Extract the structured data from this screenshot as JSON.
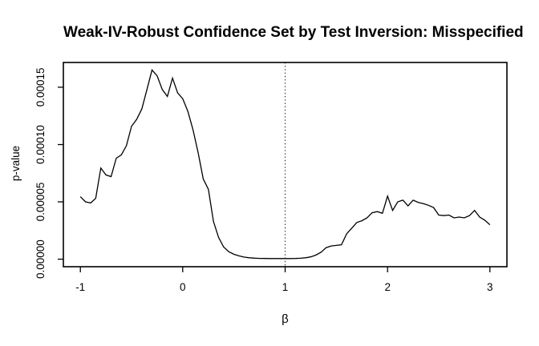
{
  "chart_data": {
    "type": "line",
    "title": "Weak-IV-Robust Confidence Set by Test Inversion: Misspecified",
    "xlabel": "β",
    "ylabel": "p-value",
    "x_tick_labels": [
      "-1",
      "0",
      "1",
      "2",
      "3"
    ],
    "x_tick_values": [
      -1,
      0,
      1,
      2,
      3
    ],
    "y_tick_labels": [
      "0.00000",
      "0.00005",
      "0.00010",
      "0.00015"
    ],
    "y_tick_values": [
      0.0,
      5e-05,
      0.0001,
      0.00015
    ],
    "xlim": [
      -1.166,
      3.166
    ],
    "ylim": [
      -6.6e-06,
      0.0001716
    ],
    "grid": false,
    "legend": "none",
    "line_color": "#000000",
    "background_color": "#ffffff",
    "reference_line": {
      "x": 1,
      "style": "dotted",
      "color": "#2a2a2a"
    },
    "series": [
      {
        "name": "p-value",
        "x": [
          -1.0,
          -0.95,
          -0.9,
          -0.85,
          -0.8,
          -0.75,
          -0.7,
          -0.65,
          -0.6,
          -0.55,
          -0.5,
          -0.45,
          -0.4,
          -0.35,
          -0.3,
          -0.25,
          -0.2,
          -0.15,
          -0.1,
          -0.05,
          0.0,
          0.05,
          0.1,
          0.15,
          0.2,
          0.25,
          0.3,
          0.35,
          0.4,
          0.45,
          0.5,
          0.55,
          0.6,
          0.65,
          0.7,
          0.75,
          0.8,
          0.85,
          0.9,
          0.95,
          1.0,
          1.05,
          1.1,
          1.15,
          1.2,
          1.25,
          1.3,
          1.35,
          1.4,
          1.45,
          1.5,
          1.55,
          1.6,
          1.65,
          1.7,
          1.75,
          1.8,
          1.85,
          1.9,
          1.95,
          2.0,
          2.05,
          2.1,
          2.15,
          2.2,
          2.25,
          2.3,
          2.35,
          2.4,
          2.45,
          2.5,
          2.55,
          2.6,
          2.65,
          2.7,
          2.75,
          2.8,
          2.85,
          2.9,
          2.95,
          3.0
        ],
        "y": [
          5.45e-05,
          5e-05,
          4.9e-05,
          5.3e-05,
          7.95e-05,
          7.35e-05,
          7.2e-05,
          8.8e-05,
          9.1e-05,
          9.9e-05,
          0.000116,
          0.000122,
          0.000131,
          0.000148,
          0.000165,
          0.00016,
          0.000148,
          0.000142,
          0.000158,
          0.000145,
          0.00014,
          0.000129,
          0.000113,
          9.3e-05,
          7e-05,
          6.1e-05,
          3.3e-05,
          1.9e-05,
          1.05e-05,
          6.5e-06,
          4.2e-06,
          2.8e-06,
          1.8e-06,
          1.2e-06,
          9e-07,
          7e-07,
          6e-07,
          5e-07,
          5e-07,
          5e-07,
          5e-07,
          5e-07,
          6e-07,
          8e-07,
          1.2e-06,
          2e-06,
          3.5e-06,
          6e-06,
          1e-05,
          1.15e-05,
          1.2e-05,
          1.25e-05,
          2.2e-05,
          2.7e-05,
          3.2e-05,
          3.35e-05,
          3.6e-05,
          4.05e-05,
          4.15e-05,
          4e-05,
          5.5e-05,
          4.25e-05,
          5e-05,
          5.15e-05,
          4.65e-05,
          5.15e-05,
          4.95e-05,
          4.85e-05,
          4.7e-05,
          4.5e-05,
          3.85e-05,
          3.8e-05,
          3.85e-05,
          3.6e-05,
          3.67e-05,
          3.6e-05,
          3.8e-05,
          4.25e-05,
          3.67e-05,
          3.4e-05,
          3e-05
        ]
      }
    ]
  }
}
